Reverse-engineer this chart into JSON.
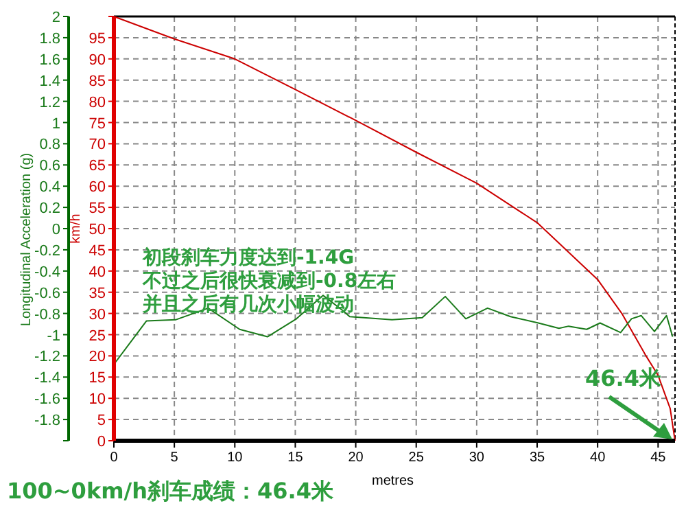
{
  "chart_data": {
    "type": "line",
    "xlabel": "metres",
    "ylabel": "Longitudinal Acceleration (g)",
    "y2label": "km/h",
    "xlim": [
      0,
      46.4
    ],
    "xticks": [
      0,
      5,
      10,
      15,
      20,
      25,
      30,
      35,
      40,
      45
    ],
    "ylim": [
      -2,
      2
    ],
    "yticks": [
      {
        "value": -2,
        "label": null
      },
      -1.8,
      -1.6,
      -1.4,
      -1.2,
      -1,
      -0.8,
      -0.6,
      -0.4,
      -0.2,
      0,
      0.2,
      0.4,
      0.6,
      0.8,
      1,
      1.2,
      1.4,
      1.6,
      1.8,
      2
    ],
    "y2lim": [
      0,
      100
    ],
    "y2ticks": [
      0,
      5,
      10,
      15,
      20,
      25,
      30,
      35,
      40,
      45,
      50,
      55,
      60,
      65,
      70,
      75,
      80,
      85,
      90,
      95,
      {
        "value": 100,
        "label": null
      }
    ],
    "grid": true,
    "marker": "none",
    "line_style": "solid",
    "series": [
      {
        "color": "#cc0000",
        "axis": "y2",
        "x": [
          0,
          5,
          10,
          15,
          20,
          25,
          30,
          35,
          40,
          42,
          44,
          45,
          46,
          46.4
        ],
        "values": [
          100,
          94.7,
          90,
          82.8,
          75.5,
          68,
          60.7,
          51.4,
          38,
          30,
          20,
          15.4,
          7.6,
          0
        ]
      },
      {
        "color": "#1a7a1a",
        "axis": "y",
        "x": [
          0,
          2.7,
          5.1,
          7.8,
          10.4,
          12.7,
          15.1,
          17.3,
          18.9,
          19.5,
          23,
          25.5,
          27.4,
          29.1,
          30.9,
          32.8,
          35.1,
          36.8,
          37.6,
          39.1,
          40.2,
          41.9,
          42.8,
          43.6,
          44.7,
          45.7,
          46.2
        ],
        "values": [
          -1.28,
          -0.87,
          -0.86,
          -0.75,
          -0.95,
          -1.02,
          -0.85,
          -0.63,
          -0.77,
          -0.83,
          -0.86,
          -0.84,
          -0.64,
          -0.85,
          -0.75,
          -0.83,
          -0.89,
          -0.94,
          -0.92,
          -0.95,
          -0.89,
          -0.98,
          -0.85,
          -0.82,
          -0.97,
          -0.82,
          -1.02
        ]
      }
    ],
    "annotations": [
      "初段刹车力度达到-1.4G",
      "不过之后很快衰减到-0.8左右",
      "并且之后有几次小幅波动",
      {
        "text": "46.4米",
        "x": 46.4,
        "y": -2
      },
      "100~0km/h刹车成绩：46.4米"
    ]
  }
}
